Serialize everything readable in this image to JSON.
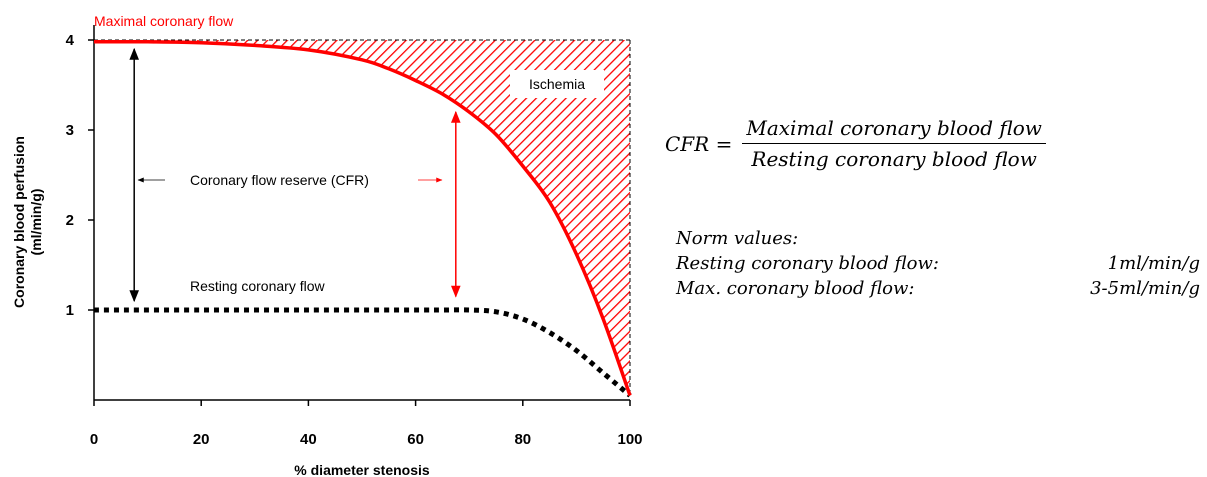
{
  "chart_data": {
    "type": "line",
    "title": "",
    "xlabel": "% diameter stenosis",
    "ylabel_line1": "Coronary blood perfusion",
    "ylabel_line2": "(ml/min/g)",
    "xlim": [
      0,
      100
    ],
    "ylim": [
      0,
      4
    ],
    "xticks": [
      0,
      20,
      40,
      60,
      80,
      100
    ],
    "yticks": [
      1,
      2,
      3,
      4
    ],
    "series": [
      {
        "name": "Maximal coronary flow",
        "color": "#ff0000",
        "style": "solid",
        "x": [
          0,
          10,
          20,
          30,
          40,
          50,
          55,
          60,
          65,
          70,
          75,
          80,
          85,
          90,
          95,
          100
        ],
        "y": [
          3.98,
          3.98,
          3.97,
          3.94,
          3.89,
          3.78,
          3.68,
          3.55,
          3.4,
          3.2,
          2.95,
          2.6,
          2.2,
          1.62,
          0.9,
          0.05
        ]
      },
      {
        "name": "Resting coronary flow",
        "color": "#000000",
        "style": "dotted",
        "x": [
          0,
          20,
          40,
          60,
          65,
          70,
          75,
          80,
          85,
          90,
          95,
          100
        ],
        "y": [
          1.0,
          1.0,
          1.0,
          1.0,
          1.0,
          1.0,
          0.98,
          0.9,
          0.75,
          0.55,
          0.3,
          0.05
        ]
      }
    ],
    "reference_line": {
      "y": 4,
      "color": "#000000",
      "style": "dashed"
    },
    "shaded_region": {
      "label": "Ischemia",
      "between": "y=4 and Maximal coronary flow",
      "color": "#ff0000",
      "pattern": "diagonal hatch"
    },
    "annotations": {
      "max_flow_label": "Maximal coronary flow",
      "ischemia_label": "Ischemia",
      "cfr_label": "Coronary flow reserve (CFR)",
      "resting_label": "Resting coronary flow"
    },
    "arrows": [
      {
        "x": 7.5,
        "y_from": 1.1,
        "y_to": 3.9,
        "color": "#000000"
      },
      {
        "x": 67.5,
        "y_from": 1.15,
        "y_to": 3.2,
        "color": "#ff0000"
      }
    ]
  },
  "formula": {
    "lhs": "CFR =",
    "numerator": "Maximal coronary blood flow",
    "denominator": "Resting coronary blood flow"
  },
  "norms": {
    "title": "Norm values:",
    "rows": [
      {
        "label": "Resting coronary blood flow:",
        "value": "1ml/min/g"
      },
      {
        "label": "Max. coronary blood flow:",
        "value": "3-5ml/min/g"
      }
    ]
  }
}
